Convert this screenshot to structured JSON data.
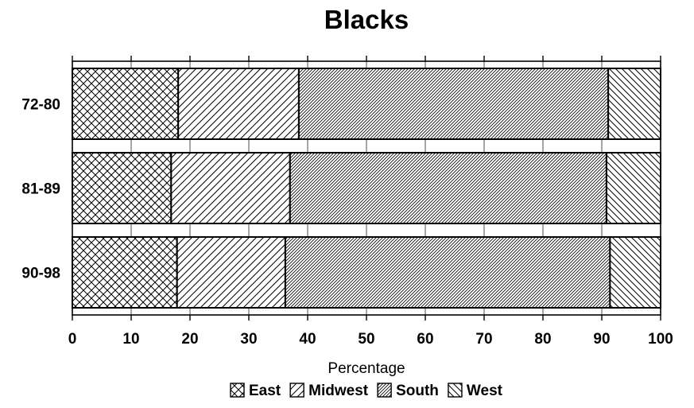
{
  "chart_data": {
    "type": "bar",
    "orientation": "horizontal",
    "stacked": true,
    "title": "Blacks",
    "xlabel": "Percentage",
    "ylabel": "",
    "categories": [
      "72-80",
      "81-89",
      "90-98"
    ],
    "series": [
      {
        "name": "East",
        "values": [
          18,
          16.8,
          17.8
        ],
        "pattern": "crosshatch"
      },
      {
        "name": "Midwest",
        "values": [
          20.5,
          20.2,
          18.4
        ],
        "pattern": "diagonal-wide"
      },
      {
        "name": "South",
        "values": [
          52.6,
          53.8,
          55.2
        ],
        "pattern": "diagonal-dense"
      },
      {
        "name": "West",
        "values": [
          8.9,
          9.2,
          8.6
        ],
        "pattern": "back-diagonal"
      }
    ],
    "xlim": [
      0,
      100
    ],
    "xticks": [
      "0",
      "10",
      "20",
      "30",
      "40",
      "50",
      "60",
      "70",
      "80",
      "90",
      "100"
    ],
    "grid": "vertical",
    "legend_position": "bottom"
  }
}
